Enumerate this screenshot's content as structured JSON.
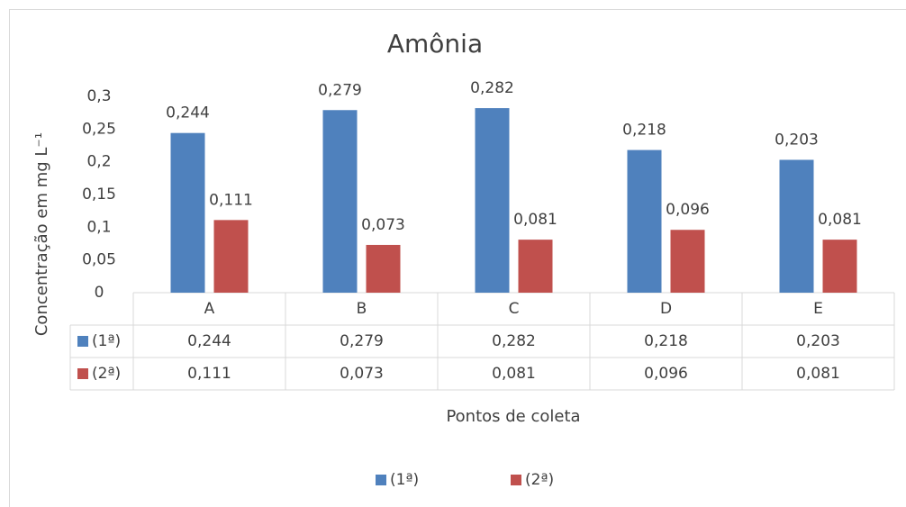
{
  "chart_data": {
    "type": "bar",
    "title": "Amônia",
    "y_label": "Concentração em mg L⁻¹",
    "x_label": "Pontos de coleta",
    "categories": [
      "A",
      "B",
      "C",
      "D",
      "E"
    ],
    "series": [
      {
        "name": "(1ª)",
        "color": "#4f81bd",
        "values": [
          0.244,
          0.279,
          0.282,
          0.218,
          0.203
        ],
        "value_labels": [
          "0,244",
          "0,279",
          "0,282",
          "0,218",
          "0,203"
        ]
      },
      {
        "name": "(2ª)",
        "color": "#c0504d",
        "values": [
          0.111,
          0.073,
          0.081,
          0.096,
          0.081
        ],
        "value_labels": [
          "0,111",
          "0,073",
          "0,081",
          "0,096",
          "0,081"
        ]
      }
    ],
    "ylim": [
      0,
      0.3
    ],
    "yticks": [
      0,
      {
        "value": 0.05,
        "label": "0,05"
      },
      {
        "value": 0.1,
        "label": "0,1"
      },
      {
        "value": 0.15,
        "label": "0,15"
      },
      {
        "value": 0.2,
        "label": "0,2"
      },
      {
        "value": 0.25,
        "label": "0,25"
      },
      {
        "value": 0.3,
        "label": "0,3"
      }
    ],
    "grid": false,
    "legend": "bottom",
    "data_table": true
  }
}
